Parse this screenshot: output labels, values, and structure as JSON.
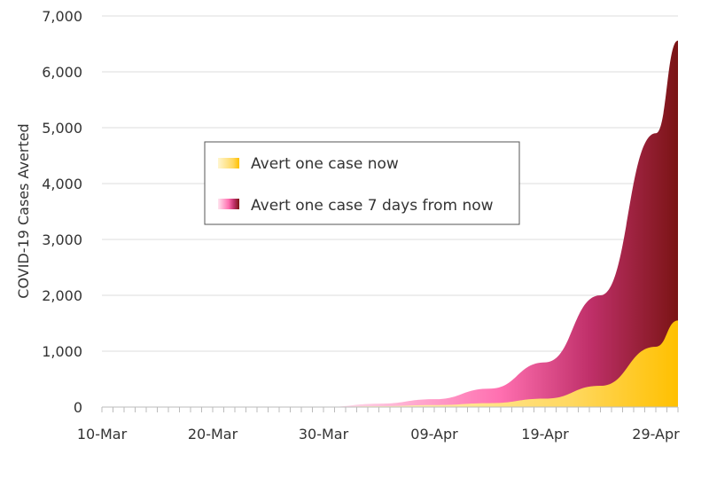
{
  "chart_data": {
    "type": "area",
    "title": "",
    "xlabel": "",
    "ylabel": "COVID-19 Cases Averted",
    "x_start": "10-Mar",
    "x_end": "01-May",
    "x_ticks": [
      "10-Mar",
      "20-Mar",
      "30-Mar",
      "09-Apr",
      "19-Apr",
      "29-Apr"
    ],
    "ylim": [
      0,
      7000
    ],
    "y_ticks": [
      0,
      1000,
      2000,
      3000,
      4000,
      5000,
      6000,
      7000
    ],
    "y_tick_labels": [
      "0",
      "1,000",
      "2,000",
      "3,000",
      "4,000",
      "5,000",
      "6,000",
      "7,000"
    ],
    "grid": true,
    "legend_position": "upper-left",
    "series": [
      {
        "name": "Avert one case now",
        "color_start": "#fff0b0",
        "color_end": "#ffc000",
        "points": [
          [
            "30-Mar",
            0
          ],
          [
            "04-Apr",
            15
          ],
          [
            "09-Apr",
            35
          ],
          [
            "14-Apr",
            70
          ],
          [
            "19-Apr",
            150
          ],
          [
            "24-Apr",
            380
          ],
          [
            "29-Apr",
            1080
          ],
          [
            "01-May",
            1550
          ]
        ]
      },
      {
        "name": "Avert one case 7 days from now",
        "color_start": "#ffe6f0",
        "color_mid": "#ff6fb0",
        "color_end": "#7a1414",
        "points": [
          [
            "30-Mar",
            0
          ],
          [
            "04-Apr",
            60
          ],
          [
            "09-Apr",
            140
          ],
          [
            "14-Apr",
            330
          ],
          [
            "19-Apr",
            800
          ],
          [
            "24-Apr",
            2000
          ],
          [
            "29-Apr",
            4900
          ],
          [
            "01-May",
            6560
          ]
        ]
      }
    ]
  }
}
